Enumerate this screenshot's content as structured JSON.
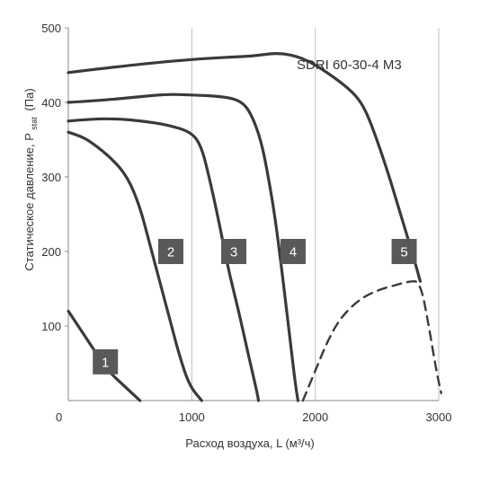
{
  "chart_data": {
    "type": "line",
    "model": "SDRI 60-30-4 M3",
    "xlabel": "Расход воздуха, L (м³/ч)",
    "ylabel_main": "Статическое давление, P",
    "ylabel_sub": "stat",
    "ylabel_unit": "(Па)",
    "xlim": [
      0,
      3000
    ],
    "ylim": [
      0,
      500
    ],
    "grid": "vertical",
    "x_ticks": [
      0,
      1000,
      2000,
      3000
    ],
    "x_tick_labels": [
      "0",
      "1000",
      "2000",
      "3000"
    ],
    "y_ticks": [
      100,
      200,
      300,
      400,
      500
    ],
    "y_tick_labels": [
      "100",
      "200",
      "300",
      "400",
      "500"
    ],
    "vgrid_at": [
      1000,
      2000,
      3000
    ],
    "colors": {
      "curve": "#3a3a3a",
      "grid": "#bfbfbf",
      "badge": "#595959",
      "axis": "#888888"
    },
    "series": [
      {
        "name": "1",
        "style": "solid",
        "label_at": [
          300,
          52
        ],
        "points": [
          [
            0,
            120
          ],
          [
            100,
            95
          ],
          [
            200,
            70
          ],
          [
            320,
            40
          ],
          [
            450,
            20
          ],
          [
            580,
            0
          ]
        ]
      },
      {
        "name": "2",
        "style": "solid",
        "label_at": [
          830,
          200
        ],
        "points": [
          [
            0,
            360
          ],
          [
            100,
            355
          ],
          [
            200,
            345
          ],
          [
            350,
            325
          ],
          [
            480,
            300
          ],
          [
            580,
            260
          ],
          [
            660,
            210
          ],
          [
            740,
            160
          ],
          [
            820,
            110
          ],
          [
            900,
            60
          ],
          [
            980,
            20
          ],
          [
            1080,
            0
          ]
        ]
      },
      {
        "name": "3",
        "style": "solid",
        "label_at": [
          1340,
          200
        ],
        "points": [
          [
            0,
            375
          ],
          [
            200,
            378
          ],
          [
            400,
            378
          ],
          [
            600,
            375
          ],
          [
            800,
            370
          ],
          [
            1000,
            360
          ],
          [
            1080,
            340
          ],
          [
            1140,
            300
          ],
          [
            1220,
            240
          ],
          [
            1290,
            180
          ],
          [
            1380,
            120
          ],
          [
            1460,
            60
          ],
          [
            1530,
            10
          ],
          [
            1540,
            0
          ]
        ]
      },
      {
        "name": "4",
        "style": "solid",
        "label_at": [
          1820,
          200
        ],
        "points": [
          [
            0,
            400
          ],
          [
            300,
            403
          ],
          [
            600,
            408
          ],
          [
            800,
            411
          ],
          [
            1000,
            410
          ],
          [
            1250,
            408
          ],
          [
            1400,
            402
          ],
          [
            1480,
            385
          ],
          [
            1560,
            350
          ],
          [
            1620,
            300
          ],
          [
            1680,
            240
          ],
          [
            1740,
            160
          ],
          [
            1790,
            90
          ],
          [
            1840,
            20
          ],
          [
            1860,
            0
          ]
        ]
      },
      {
        "name": "5",
        "style": "solid",
        "label_at": [
          2720,
          200
        ],
        "points": [
          [
            0,
            440
          ],
          [
            400,
            448
          ],
          [
            800,
            455
          ],
          [
            1200,
            460
          ],
          [
            1500,
            462
          ],
          [
            1700,
            467
          ],
          [
            1900,
            460
          ],
          [
            2100,
            440
          ],
          [
            2300,
            415
          ],
          [
            2400,
            393
          ],
          [
            2500,
            350
          ],
          [
            2600,
            300
          ],
          [
            2700,
            245
          ],
          [
            2800,
            190
          ],
          [
            2850,
            160
          ]
        ]
      },
      {
        "name": "",
        "style": "dashed",
        "label_at": null,
        "points": [
          [
            1900,
            0
          ],
          [
            2000,
            40
          ],
          [
            2100,
            80
          ],
          [
            2200,
            110
          ],
          [
            2350,
            135
          ],
          [
            2500,
            148
          ],
          [
            2650,
            155
          ],
          [
            2760,
            160
          ],
          [
            2850,
            160
          ],
          [
            2920,
            100
          ],
          [
            2980,
            40
          ],
          [
            3020,
            10
          ]
        ]
      }
    ]
  }
}
